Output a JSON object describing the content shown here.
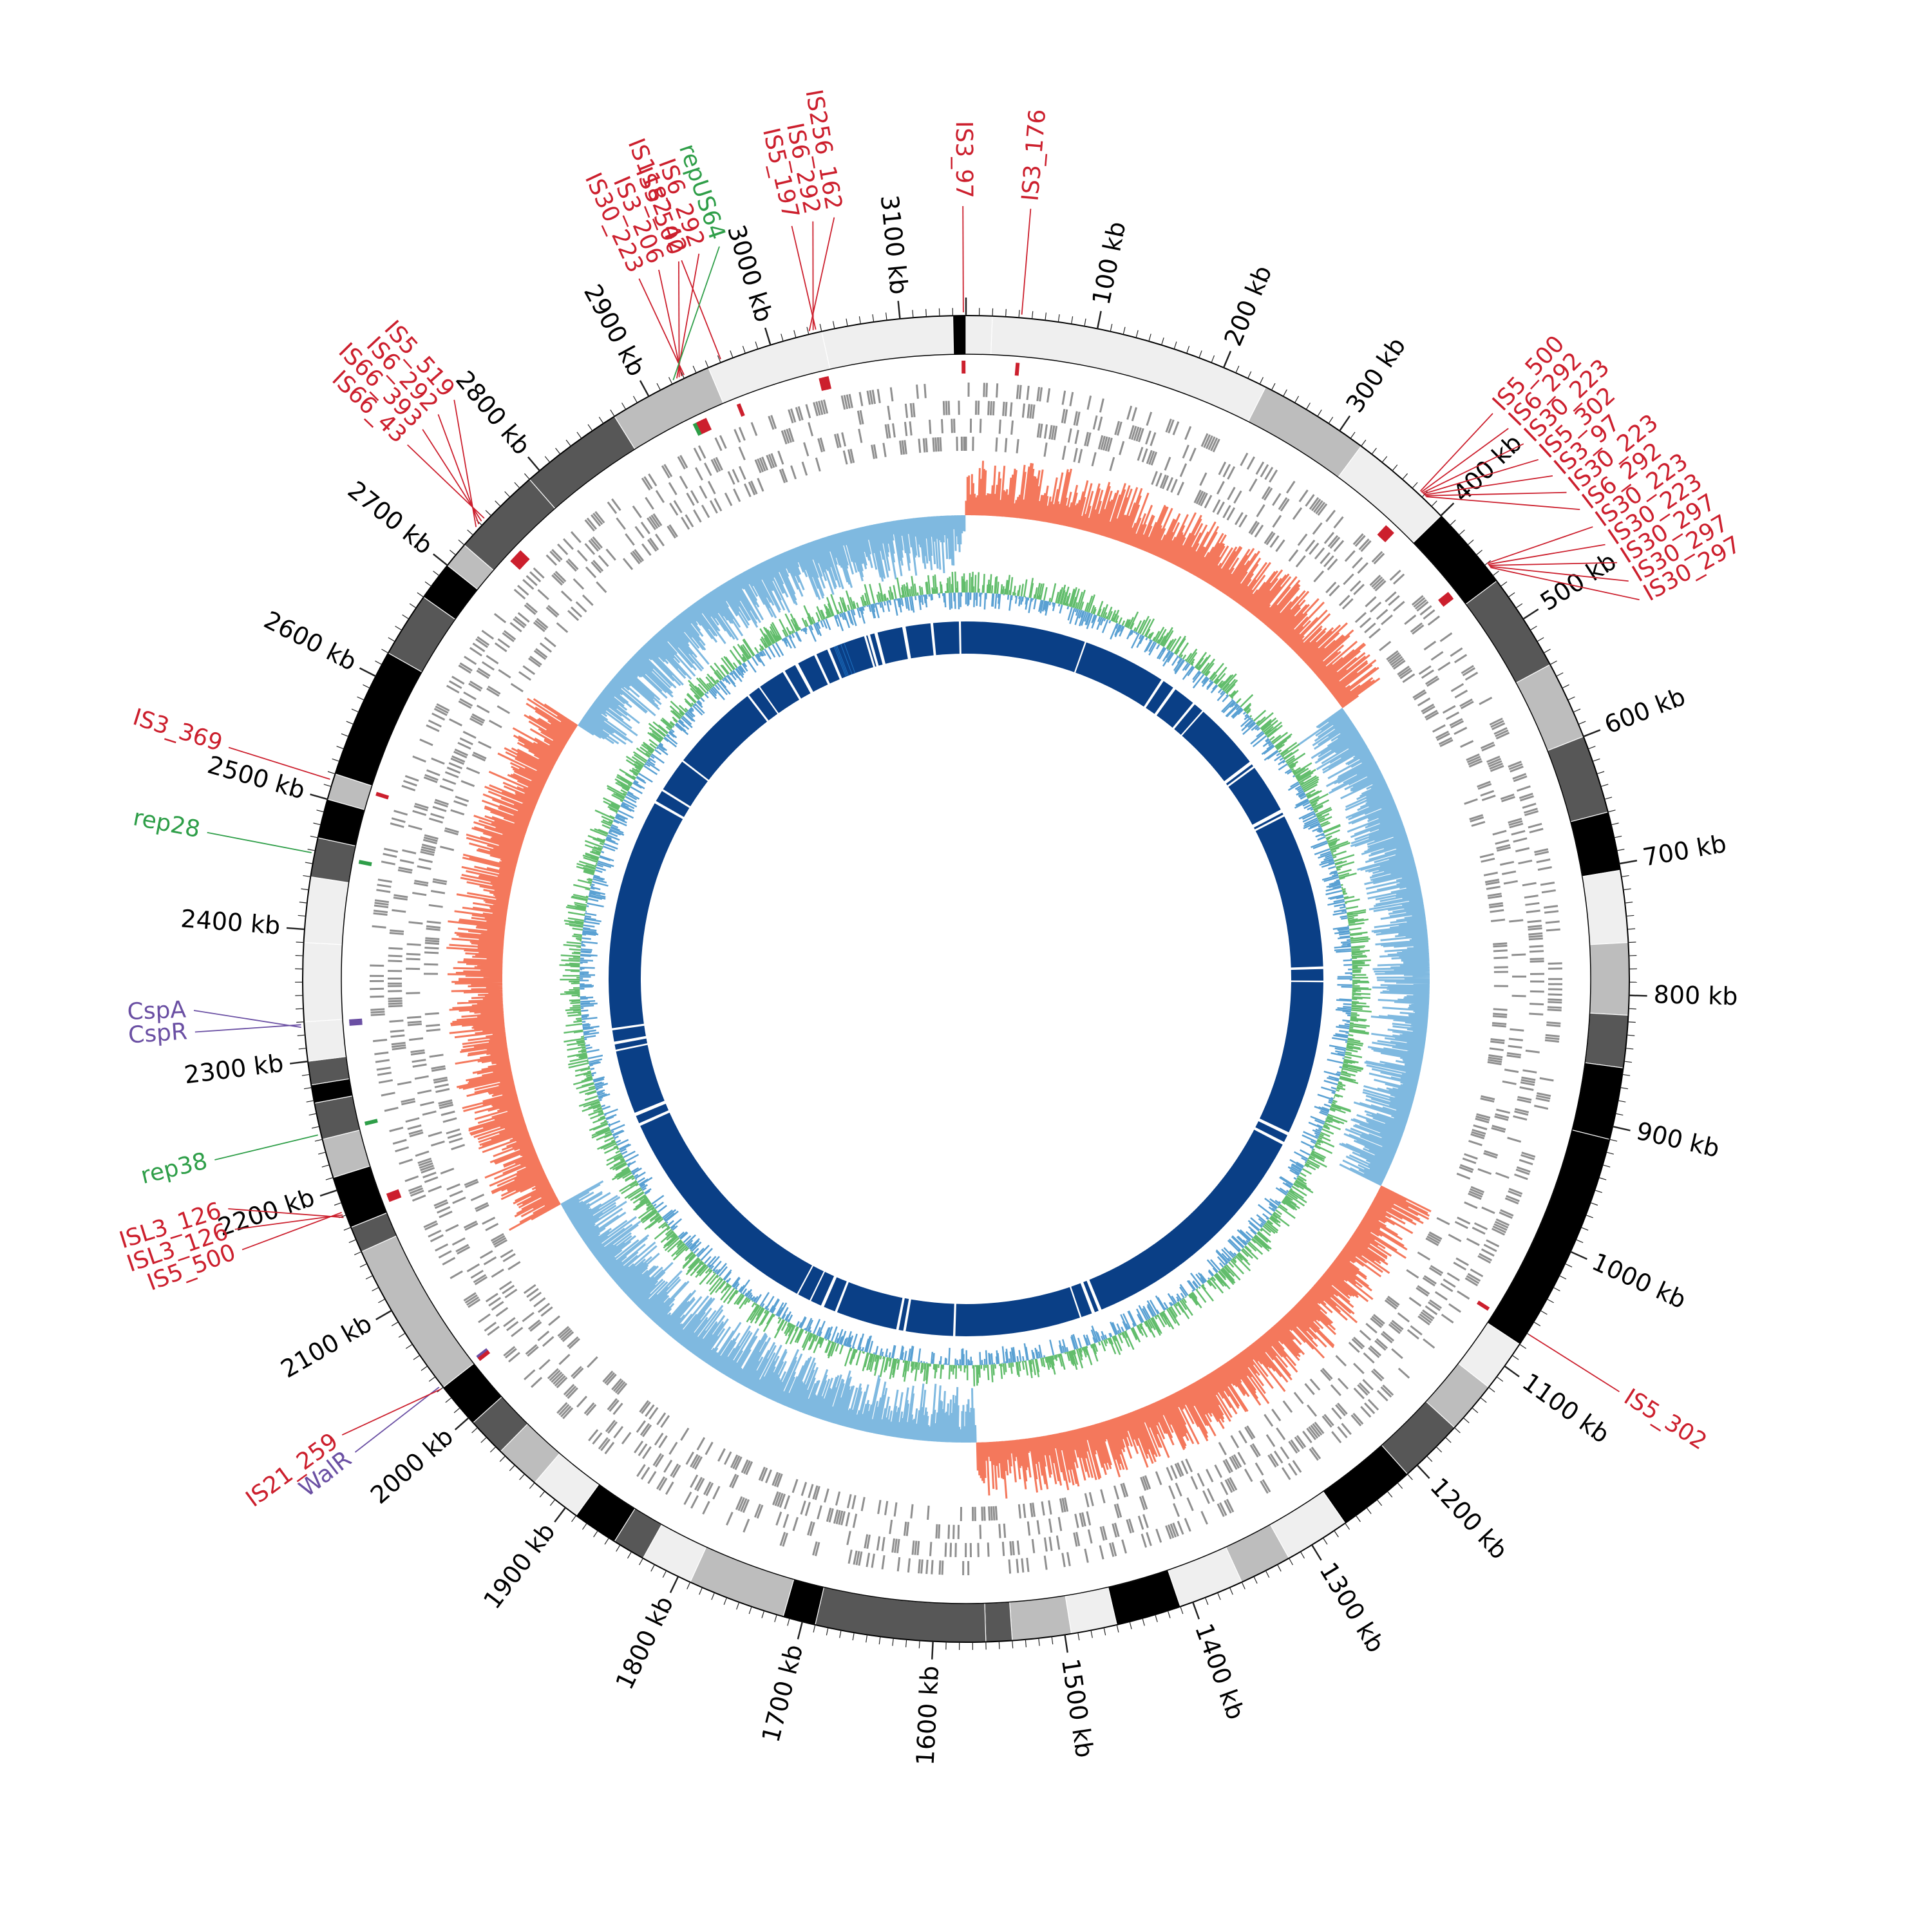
{
  "genome": {
    "length_kb": 3150,
    "palette": {
      "ink": "#000000",
      "ticks": "#222222",
      "is_red": "#cc1f2d",
      "rep_green": "#2e9e48",
      "gene_purple": "#6a4fa3",
      "cds_grey": "#8f8f8f",
      "gc_skew_positive": "#f4785c",
      "gc_skew_negative": "#7fb9e0",
      "gc_content_green": "#62bd6c",
      "gc_content_blue": "#5aa1d3",
      "core_blue": "#0a3f86",
      "core_accent": "#1c6fc0",
      "band_shades": [
        "#000000",
        "#575757",
        "#bdbdbd",
        "#efefef"
      ]
    },
    "scale_labels": [
      {
        "kb": 100,
        "text": "100 kb"
      },
      {
        "kb": 200,
        "text": "200 kb"
      },
      {
        "kb": 300,
        "text": "300 kb"
      },
      {
        "kb": 400,
        "text": "400 kb"
      },
      {
        "kb": 500,
        "text": "500 kb"
      },
      {
        "kb": 600,
        "text": "600 kb"
      },
      {
        "kb": 700,
        "text": "700 kb"
      },
      {
        "kb": 800,
        "text": "800 kb"
      },
      {
        "kb": 900,
        "text": "900 kb"
      },
      {
        "kb": 1000,
        "text": "1000 kb"
      },
      {
        "kb": 1100,
        "text": "1100 kb"
      },
      {
        "kb": 1200,
        "text": "1200 kb"
      },
      {
        "kb": 1300,
        "text": "1300 kb"
      },
      {
        "kb": 1400,
        "text": "1400 kb"
      },
      {
        "kb": 1500,
        "text": "1500 kb"
      },
      {
        "kb": 1600,
        "text": "1600 kb"
      },
      {
        "kb": 1700,
        "text": "1700 kb"
      },
      {
        "kb": 1800,
        "text": "1800 kb"
      },
      {
        "kb": 1900,
        "text": "1900 kb"
      },
      {
        "kb": 2000,
        "text": "2000 kb"
      },
      {
        "kb": 2100,
        "text": "2100 kb"
      },
      {
        "kb": 2200,
        "text": "2200 kb"
      },
      {
        "kb": 2300,
        "text": "2300 kb"
      },
      {
        "kb": 2400,
        "text": "2400 kb"
      },
      {
        "kb": 2500,
        "text": "2500 kb"
      },
      {
        "kb": 2600,
        "text": "2600 kb"
      },
      {
        "kb": 2700,
        "text": "2700 kb"
      },
      {
        "kb": 2800,
        "text": "2800 kb"
      },
      {
        "kb": 2900,
        "text": "2900 kb"
      },
      {
        "kb": 3000,
        "text": "3000 kb"
      },
      {
        "kb": 3100,
        "text": "3100 kb"
      }
    ],
    "features": [
      {
        "label": "IS3_97",
        "kb": 3148,
        "kind": "is"
      },
      {
        "label": "IS3_176",
        "kb": 42,
        "kind": "is"
      },
      {
        "label": "IS5_197",
        "kb": 3036,
        "kind": "is"
      },
      {
        "label": "IS6_292",
        "kb": 3034,
        "kind": "is"
      },
      {
        "label": "IS256_162",
        "kb": 3031,
        "kind": "is"
      },
      {
        "label": "IS1182_42",
        "kb": 2961,
        "kind": "is"
      },
      {
        "label": "IS30_223",
        "kb": 2931,
        "kind": "is"
      },
      {
        "label": "IS3_206",
        "kb": 2929,
        "kind": "is"
      },
      {
        "label": "IS5_500",
        "kb": 2927,
        "kind": "is"
      },
      {
        "label": "IS6_292",
        "kb": 2925,
        "kind": "is"
      },
      {
        "label": "repUS64",
        "kb": 2922,
        "kind": "rep"
      },
      {
        "label": "IS66_43",
        "kb": 2745,
        "kind": "is"
      },
      {
        "label": "IS66_393",
        "kb": 2742,
        "kind": "is"
      },
      {
        "label": "IS6_292",
        "kb": 2739,
        "kind": "is"
      },
      {
        "label": "IS5_519",
        "kb": 2736,
        "kind": "is"
      },
      {
        "label": "IS3_369",
        "kb": 2515,
        "kind": "is"
      },
      {
        "label": "rep28",
        "kb": 2458,
        "kind": "rep"
      },
      {
        "label": "CspR",
        "kb": 2328,
        "kind": "gene"
      },
      {
        "label": "CspA",
        "kb": 2326,
        "kind": "gene"
      },
      {
        "label": "rep38",
        "kb": 2244,
        "kind": "rep"
      },
      {
        "label": "IS5_500",
        "kb": 2183,
        "kind": "is"
      },
      {
        "label": "ISL3_126",
        "kb": 2181,
        "kind": "is"
      },
      {
        "label": "ISL3_126",
        "kb": 2179,
        "kind": "is"
      },
      {
        "label": "WalR",
        "kb": 2032,
        "kind": "gene"
      },
      {
        "label": "IS21_259",
        "kb": 2030,
        "kind": "is"
      },
      {
        "label": "IS5_302",
        "kb": 1070,
        "kind": "is"
      },
      {
        "label": "IS5_500",
        "kb": 376,
        "kind": "is"
      },
      {
        "label": "IS6_292",
        "kb": 377,
        "kind": "is"
      },
      {
        "label": "IS30_223",
        "kb": 378,
        "kind": "is"
      },
      {
        "label": "IS5_302",
        "kb": 379,
        "kind": "is"
      },
      {
        "label": "IS3_97",
        "kb": 380,
        "kind": "is"
      },
      {
        "label": "IS30_223",
        "kb": 381,
        "kind": "is"
      },
      {
        "label": "IS6_292",
        "kb": 382,
        "kind": "is"
      },
      {
        "label": "IS30_223",
        "kb": 450,
        "kind": "is"
      },
      {
        "label": "IS30_223",
        "kb": 451,
        "kind": "is"
      },
      {
        "label": "IS30_297",
        "kb": 452,
        "kind": "is"
      },
      {
        "label": "IS30_297",
        "kb": 453,
        "kind": "is"
      },
      {
        "label": "IS30_297",
        "kb": 454,
        "kind": "is"
      }
    ]
  }
}
